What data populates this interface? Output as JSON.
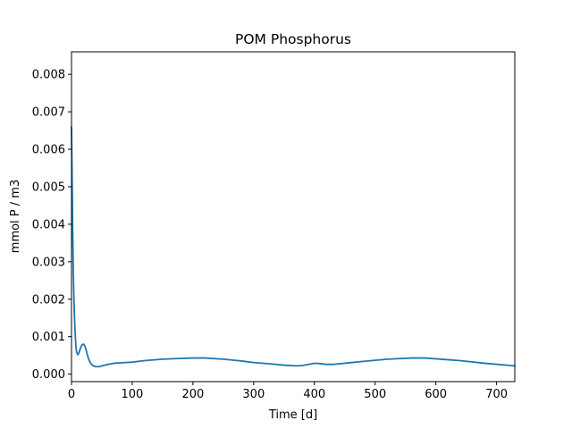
{
  "chart_data": {
    "type": "line",
    "title": "POM Phosphorus",
    "xlabel": "Time [d]",
    "ylabel": "mmol P / m3",
    "xlim": [
      0,
      730
    ],
    "ylim": [
      -0.0002,
      0.0086
    ],
    "xticks": [
      0,
      100,
      200,
      300,
      400,
      500,
      600,
      700
    ],
    "xtick_labels": [
      "0",
      "100",
      "200",
      "300",
      "400",
      "500",
      "600",
      "700"
    ],
    "yticks": [
      0.0,
      0.001,
      0.002,
      0.003,
      0.004,
      0.005,
      0.006,
      0.007,
      0.008
    ],
    "ytick_labels": [
      "0.000",
      "0.001",
      "0.002",
      "0.003",
      "0.004",
      "0.005",
      "0.006",
      "0.007",
      "0.008"
    ],
    "grid": false,
    "legend": "none",
    "series": [
      {
        "color": "#1f77b4",
        "x": [
          0,
          1,
          2,
          3,
          4,
          5,
          6,
          7,
          8,
          10,
          12,
          14,
          17,
          20,
          22,
          24,
          26,
          28,
          30,
          33,
          36,
          40,
          45,
          50,
          55,
          60,
          70,
          80,
          100,
          120,
          150,
          180,
          200,
          220,
          250,
          280,
          300,
          330,
          350,
          370,
          380,
          390,
          400,
          410,
          420,
          430,
          450,
          480,
          520,
          560,
          580,
          600,
          640,
          680,
          730
        ],
        "y": [
          0.0066,
          0.0052,
          0.0038,
          0.0027,
          0.002,
          0.0015,
          0.0011,
          0.0008,
          0.00063,
          0.00052,
          0.00055,
          0.00066,
          0.00078,
          0.0008,
          0.00075,
          0.00065,
          0.00052,
          0.00042,
          0.00033,
          0.00026,
          0.00022,
          0.0002,
          0.0002,
          0.00022,
          0.00024,
          0.00026,
          0.00029,
          0.0003,
          0.00032,
          0.00036,
          0.0004,
          0.00042,
          0.00043,
          0.00043,
          0.0004,
          0.00035,
          0.00031,
          0.00027,
          0.00024,
          0.00022,
          0.00023,
          0.00026,
          0.00029,
          0.00028,
          0.00026,
          0.00026,
          0.00029,
          0.00034,
          0.0004,
          0.00043,
          0.00043,
          0.00041,
          0.00036,
          0.00029,
          0.00022
        ]
      }
    ]
  }
}
